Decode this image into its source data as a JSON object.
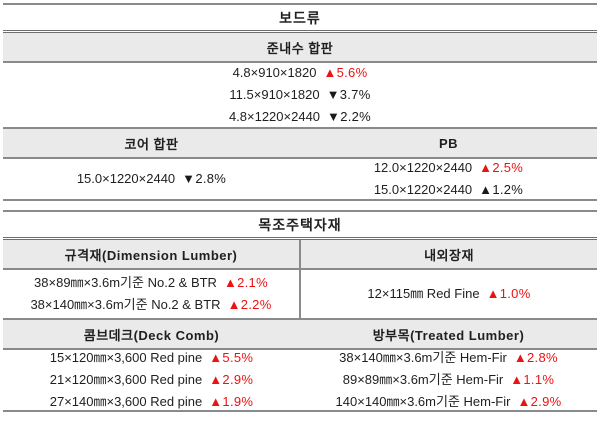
{
  "colors": {
    "up_red": "#ee1111",
    "neutral_dark": "#1a1a1a",
    "header_bg": "#eaeaea",
    "border_gray": "#8a8a8a"
  },
  "board_table": {
    "title": "보드류",
    "plywood": {
      "header": "준내수 합판",
      "rows": [
        {
          "label": "4.8×910×1820",
          "delta": "▲5.6%",
          "color": "#ee1111"
        },
        {
          "label": "11.5×910×1820",
          "delta": "▼3.7%",
          "color": "#1a1a1a"
        },
        {
          "label": "4.8×1220×2440",
          "delta": "▼2.2%",
          "color": "#1a1a1a"
        }
      ]
    },
    "core_pb": {
      "left_header": "코어 합판",
      "right_header": "PB",
      "left_rows": [
        {
          "label": "15.0×1220×2440",
          "delta": "▼2.8%",
          "color": "#1a1a1a"
        }
      ],
      "right_rows": [
        {
          "label": "12.0×1220×2440",
          "delta": "▲2.5%",
          "color": "#ee1111"
        },
        {
          "label": "15.0×1220×2440",
          "delta": "▲1.2%",
          "color": "#1a1a1a"
        }
      ]
    }
  },
  "lumber_table": {
    "title": "목조주택자재",
    "dimension_section": {
      "left_header": "규격재(Dimension Lumber)",
      "right_header": "내외장재",
      "left_rows": [
        {
          "label": "38×89㎜×3.6m기준 No.2 & BTR",
          "delta": "▲2.1%",
          "color": "#ee1111"
        },
        {
          "label": "38×140㎜×3.6m기준 No.2 & BTR",
          "delta": "▲2.2%",
          "color": "#ee1111"
        }
      ],
      "right_rows": [
        {
          "label": "12×115㎜ Red Fine",
          "delta": "▲1.0%",
          "color": "#ee1111"
        }
      ]
    },
    "deck_section": {
      "left_header": "콤브데크(Deck Comb)",
      "right_header": "방부목(Treated Lumber)",
      "left_rows": [
        {
          "label": "15×120㎜×3,600 Red pine",
          "delta": "▲5.5%",
          "color": "#ee1111"
        },
        {
          "label": "21×120㎜×3,600 Red pine",
          "delta": "▲2.9%",
          "color": "#ee1111"
        },
        {
          "label": "27×140㎜×3,600 Red pine",
          "delta": "▲1.9%",
          "color": "#ee1111"
        }
      ],
      "right_rows": [
        {
          "label": "38×140㎜×3.6m기준 Hem-Fir",
          "delta": "▲2.8%",
          "color": "#ee1111"
        },
        {
          "label": "89×89㎜×3.6m기준 Hem-Fir",
          "delta": "▲1.1%",
          "color": "#ee1111"
        },
        {
          "label": "140×140㎜×3.6m기준 Hem-Fir",
          "delta": "▲2.9%",
          "color": "#ee1111"
        }
      ]
    }
  }
}
